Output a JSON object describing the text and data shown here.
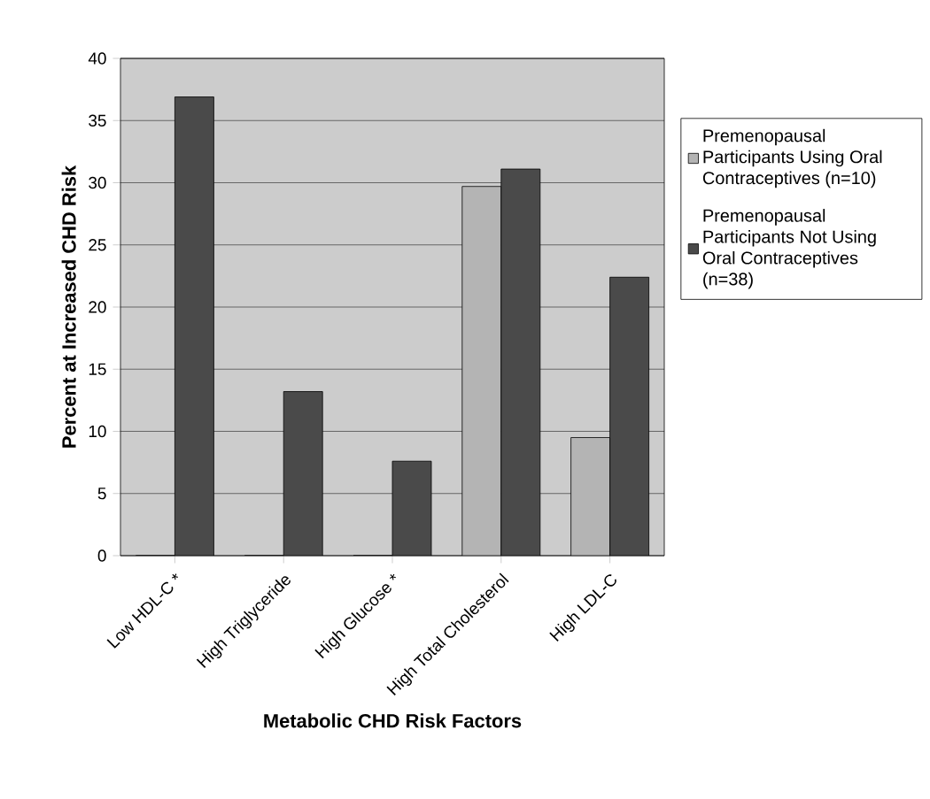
{
  "chart_data": {
    "type": "bar",
    "xlabel": "Metabolic CHD Risk Factors",
    "ylabel": "Percent at Increased CHD Risk",
    "categories": [
      "Low HDL-C *",
      "High Triglyceride",
      "High Glucose *",
      "High Total Cholesterol",
      "High LDL-C"
    ],
    "series": [
      {
        "name": "Premenopausal Participants Using Oral Contraceptives (n=10)",
        "color": "#b4b4b4",
        "values": [
          0,
          0,
          0,
          29.7,
          9.5
        ]
      },
      {
        "name": "Premenopausal Participants Not Using Oral Contraceptives (n=38)",
        "color": "#4a4a4a",
        "values": [
          36.9,
          13.2,
          7.6,
          31.1,
          22.4
        ]
      }
    ],
    "ylim": [
      0,
      40
    ],
    "yticks": [
      0,
      5,
      10,
      15,
      20,
      25,
      30,
      35,
      40
    ],
    "grid": "y",
    "legend": "right"
  }
}
